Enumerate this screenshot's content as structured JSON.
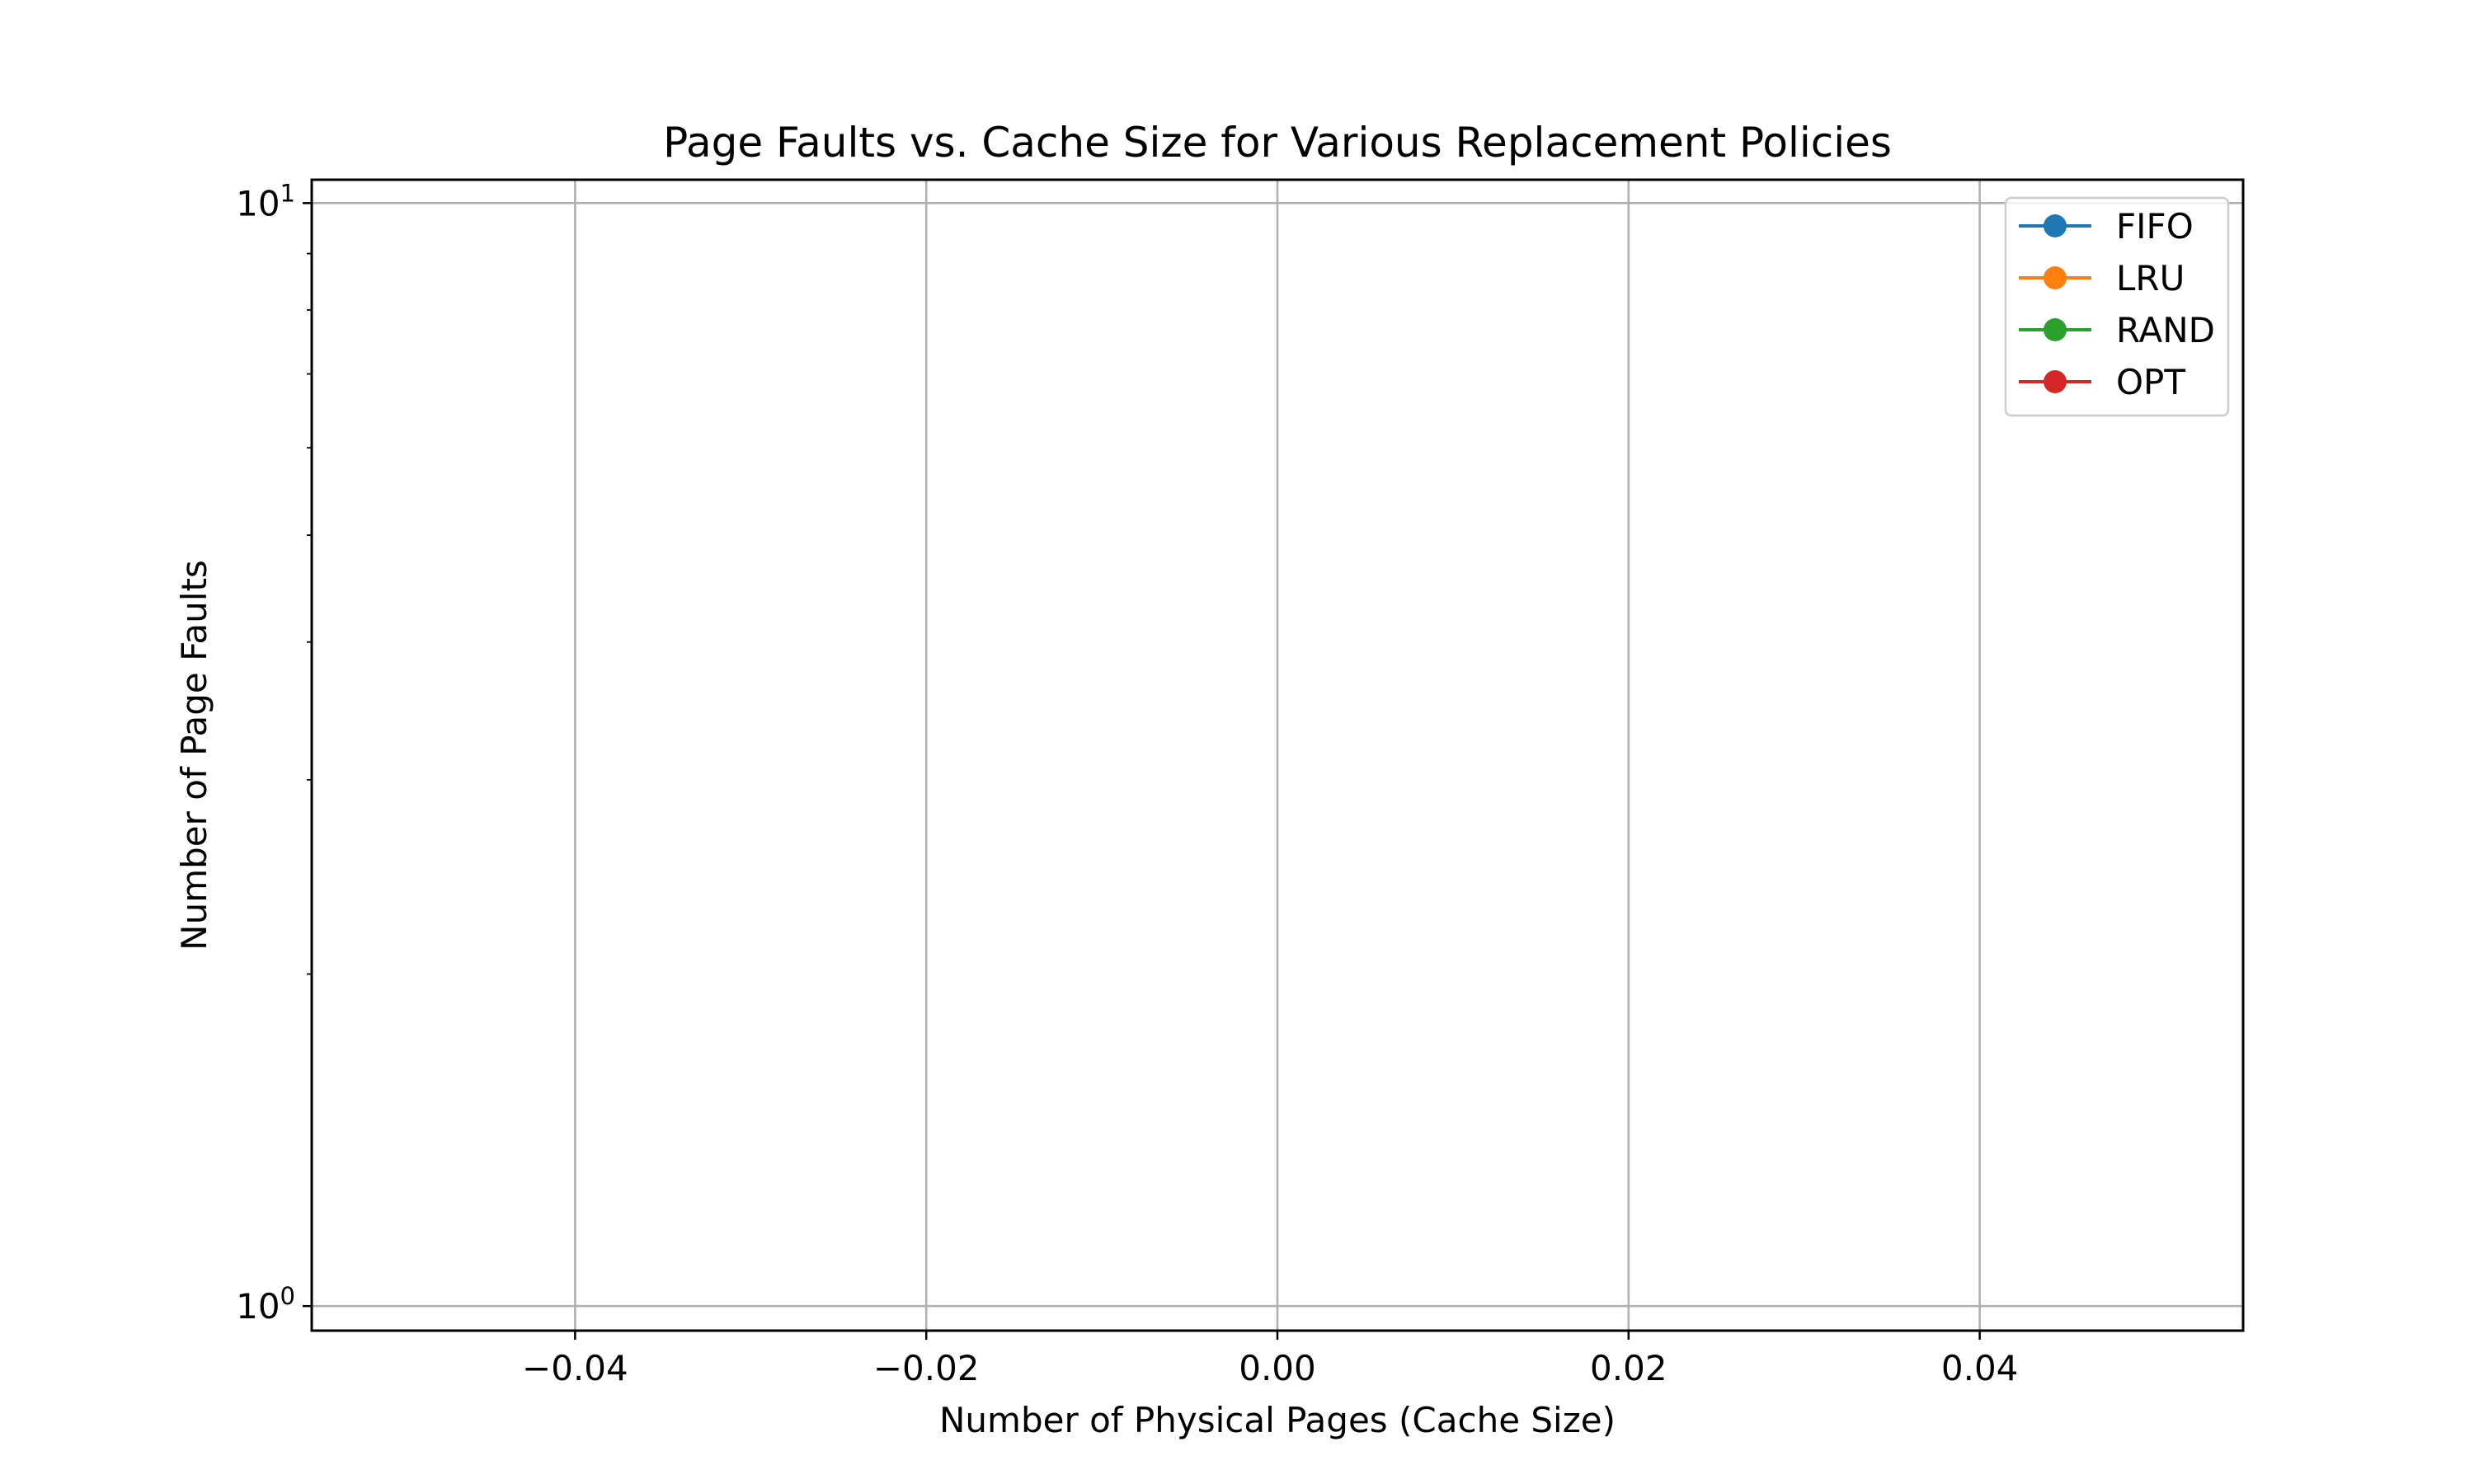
{
  "chart_data": {
    "type": "line",
    "title": "Page Faults vs. Cache Size for Various Replacement Policies",
    "xlabel": "Number of Physical Pages (Cache Size)",
    "ylabel": "Number of Page Faults",
    "xlim": [
      -0.055,
      0.055
    ],
    "ylim": [
      0.95,
      10.5
    ],
    "yscale": "log",
    "x_ticks": [
      -0.04,
      -0.02,
      0.0,
      0.02,
      0.04
    ],
    "x_tick_labels": [
      "−0.04",
      "−0.02",
      "0.00",
      "0.02",
      "0.04"
    ],
    "y_ticks": [
      1,
      10
    ],
    "y_tick_labels": [
      {
        "base": "10",
        "exp": "0"
      },
      {
        "base": "10",
        "exp": "1"
      }
    ],
    "grid": true,
    "legend_position": "top-right",
    "series": [
      {
        "name": "FIFO",
        "color": "#1f77b4",
        "marker": "circle",
        "x": [],
        "y": []
      },
      {
        "name": "LRU",
        "color": "#ff7f0e",
        "marker": "circle",
        "x": [],
        "y": []
      },
      {
        "name": "RAND",
        "color": "#2ca02c",
        "marker": "circle",
        "x": [],
        "y": []
      },
      {
        "name": "OPT",
        "color": "#d62728",
        "marker": "circle",
        "x": [],
        "y": []
      }
    ]
  }
}
